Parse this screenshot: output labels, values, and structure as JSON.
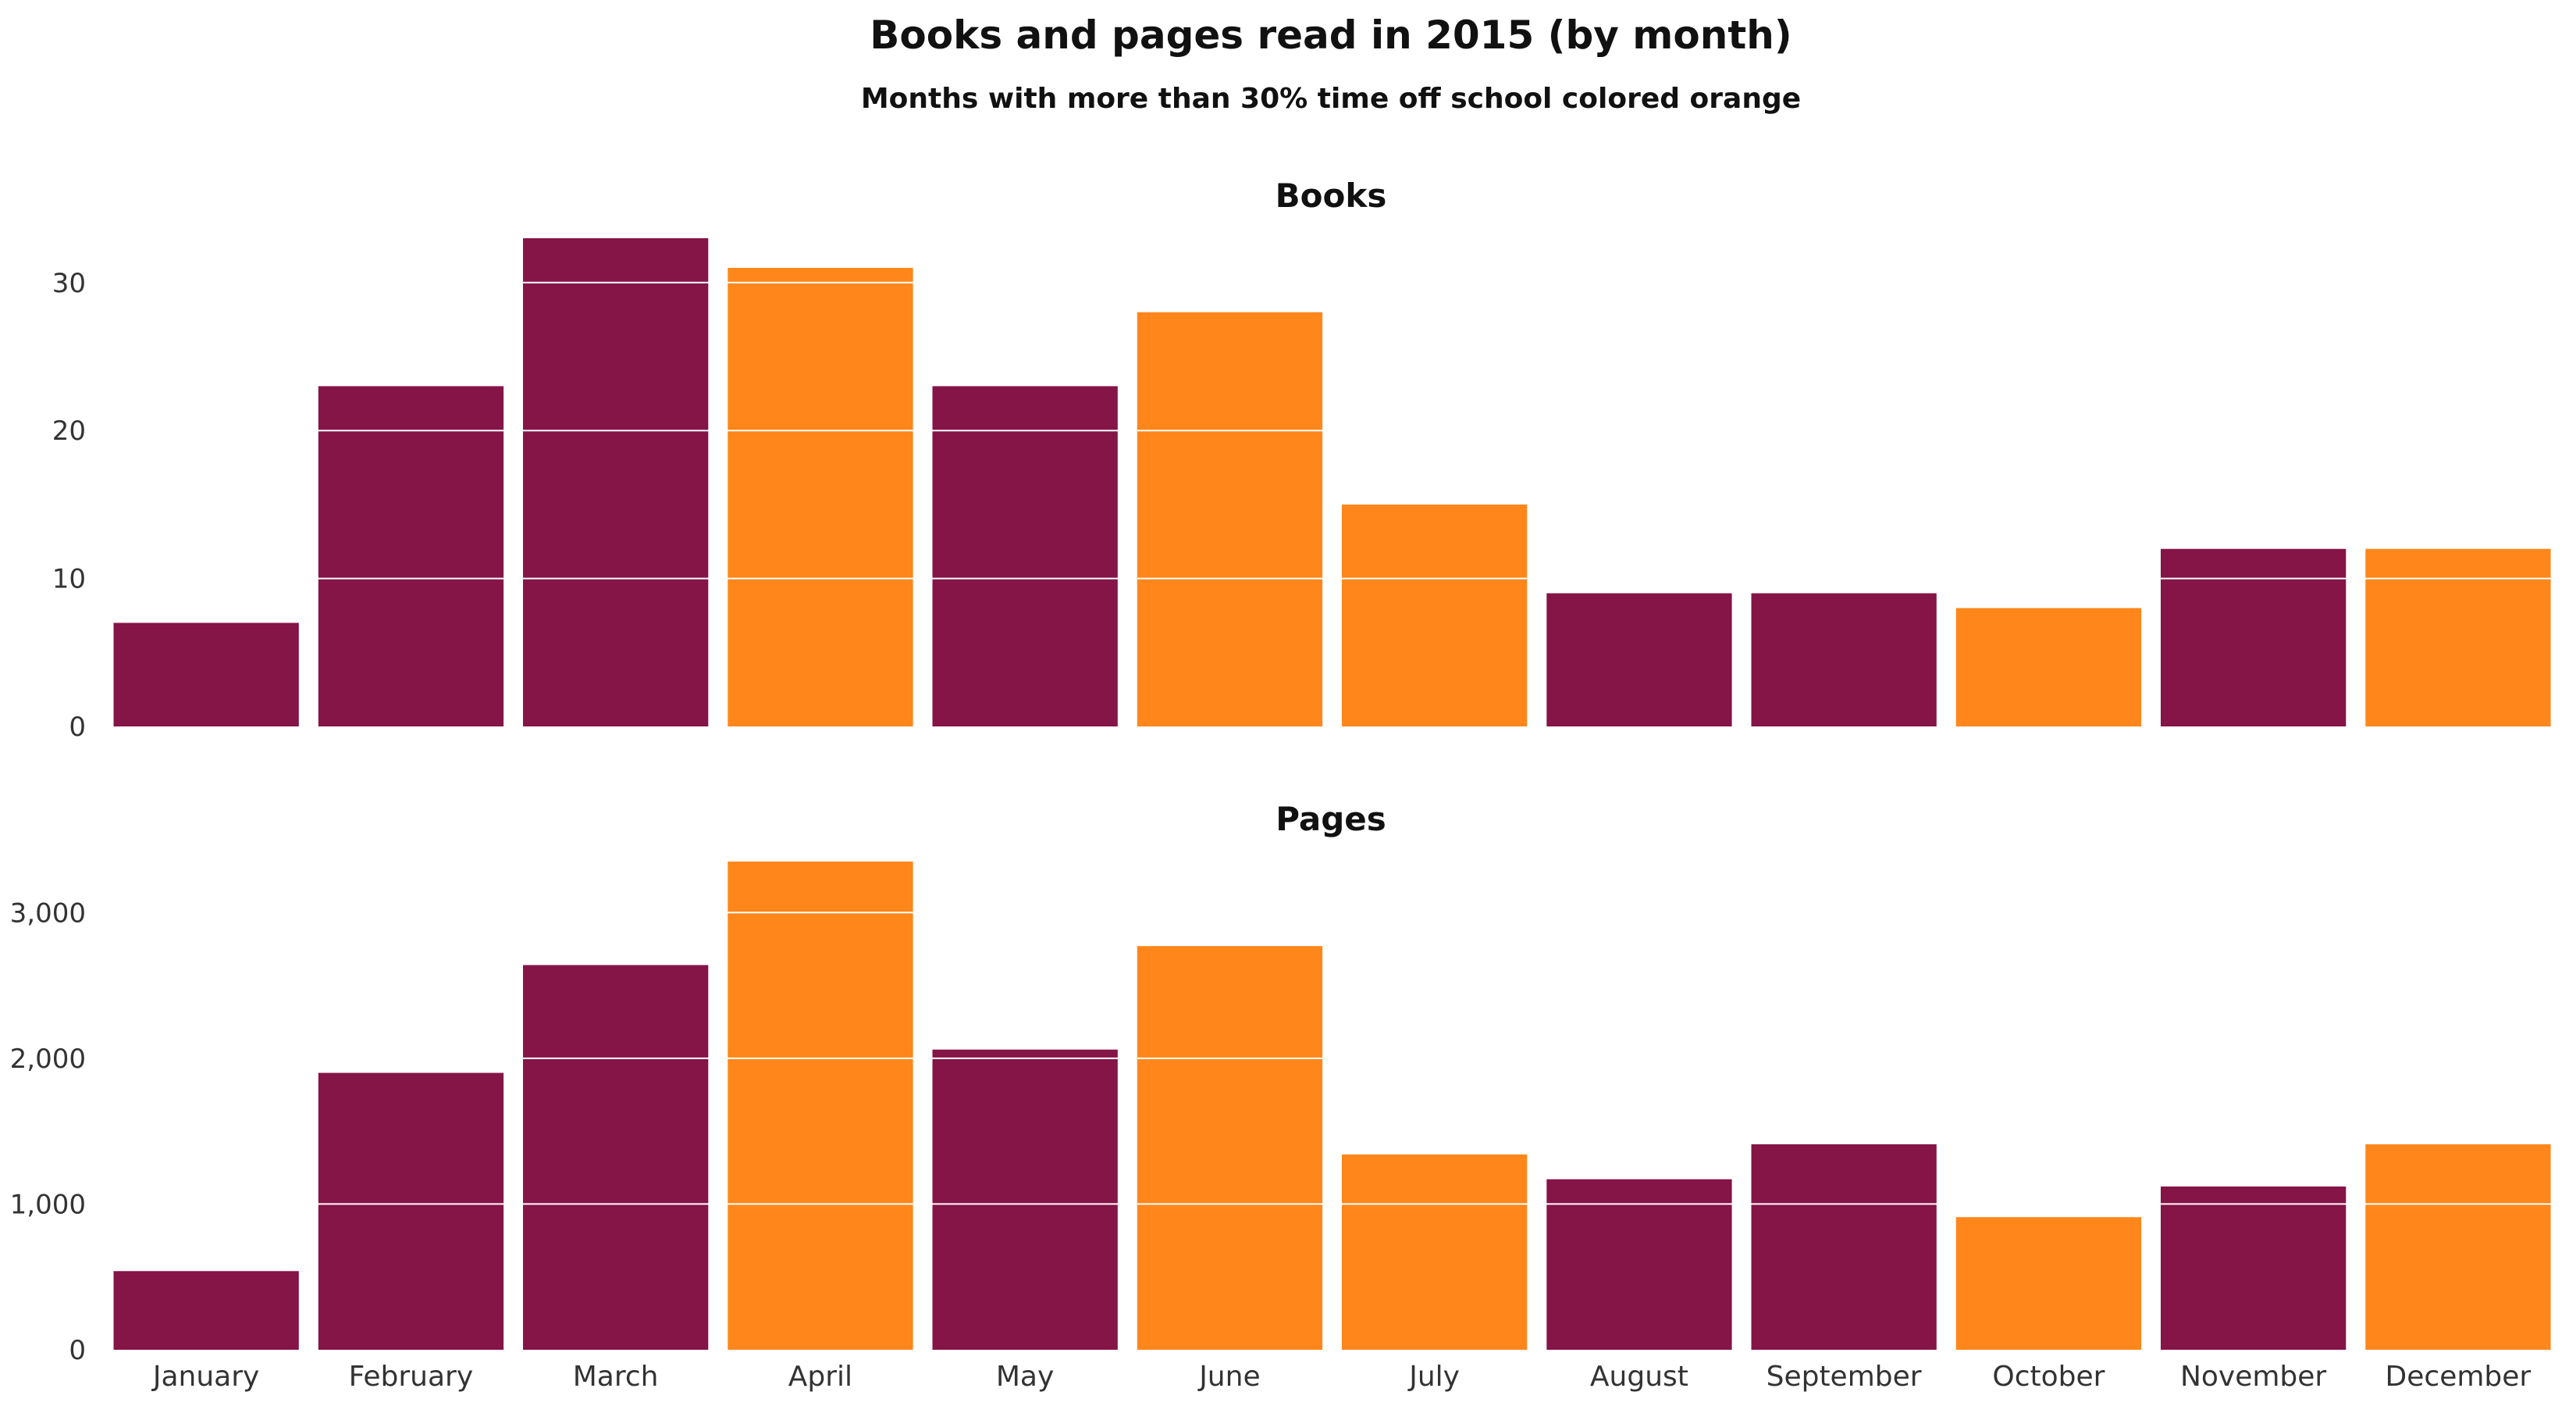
{
  "title": "Books and pages read in 2015 (by month)",
  "subtitle": "Months with more than 30% time off school colored orange",
  "colors": {
    "normal": "#851447",
    "time_off": "#FE861A",
    "grid": "#ffffff"
  },
  "chart_data": [
    {
      "type": "bar",
      "title": "Books",
      "categories": [
        "January",
        "February",
        "March",
        "April",
        "May",
        "June",
        "July",
        "August",
        "September",
        "October",
        "November",
        "December"
      ],
      "values": [
        7,
        23,
        33,
        31,
        23,
        28,
        15,
        9,
        9,
        8,
        12,
        12
      ],
      "time_off": [
        false,
        false,
        false,
        true,
        false,
        true,
        true,
        false,
        false,
        true,
        false,
        true
      ],
      "yticks": [
        0,
        10,
        20,
        30
      ],
      "ytick_labels": [
        "0",
        "10",
        "20",
        "30"
      ],
      "ylim": [
        0,
        33
      ],
      "grid": true
    },
    {
      "type": "bar",
      "title": "Pages",
      "categories": [
        "January",
        "February",
        "March",
        "April",
        "May",
        "June",
        "July",
        "August",
        "September",
        "October",
        "November",
        "December"
      ],
      "values": [
        540,
        1900,
        2640,
        3350,
        2060,
        2770,
        1340,
        1170,
        1410,
        910,
        1120,
        1410
      ],
      "time_off": [
        false,
        false,
        false,
        true,
        false,
        true,
        true,
        false,
        false,
        true,
        false,
        true
      ],
      "yticks": [
        0,
        1000,
        2000,
        3000
      ],
      "ytick_labels": [
        "0",
        "1,000",
        "2,000",
        "3,000"
      ],
      "ylim": [
        0,
        3350
      ],
      "grid": true
    }
  ]
}
